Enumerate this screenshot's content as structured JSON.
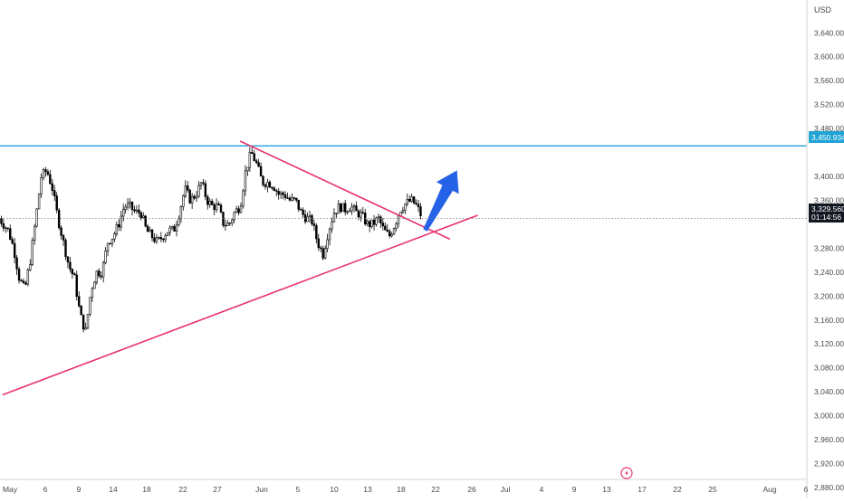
{
  "colors": {
    "background": "#ffffff",
    "candle": "#000000",
    "resistance_line": "#1fa3d4",
    "trendline": "#e8336f",
    "arrow": "#2462e8",
    "price_label_bg": "#131722",
    "axis_text": "#4a4a4a",
    "current_price_dotted": "#7a7a7a"
  },
  "price_axis": {
    "currency": "USD"
  },
  "current_price": {
    "value": "3,329.560",
    "countdown": "01:14:56"
  },
  "resistance": {
    "value": "3,450.934"
  },
  "arrow_icon": "up-right-arrow",
  "lightning_icon": "lightning-icon",
  "chart_data": {
    "type": "candlestick",
    "title": "",
    "ylabel": "",
    "xlabel": "",
    "ylim": [
      2880,
      3660
    ],
    "y_ticks": [
      3640,
      3600,
      3560,
      3520,
      3480,
      3400,
      3360,
      3280,
      3240,
      3200,
      3160,
      3120,
      3080,
      3040,
      3000,
      2960,
      2920,
      2880
    ],
    "y_tick_labels": [
      "3,640.000",
      "3,600.000",
      "3,560.000",
      "3,520.000",
      "3,480.000",
      "3,400.000",
      "3,360.000",
      "3,280.000",
      "3,240.000",
      "3,200.000",
      "3,160.000",
      "3,120.000",
      "3,080.000",
      "3,040.000",
      "3,000.000",
      "2,960.000",
      "2,920.000",
      "2,880.000"
    ],
    "x_tick_labels": [
      "May",
      "6",
      "9",
      "14",
      "18",
      "22",
      "27",
      "Jun",
      "5",
      "10",
      "13",
      "18",
      "22",
      "26",
      "Jul",
      "4",
      "9",
      "13",
      "17",
      "22",
      "25",
      "Aug",
      "6"
    ],
    "grid": false,
    "close_path": [
      [
        "May 1",
        3310
      ],
      [
        "May 2",
        3280
      ],
      [
        "May 3",
        3230
      ],
      [
        "May 4",
        3210
      ],
      [
        "May 5",
        3260
      ],
      [
        "May 6",
        3330
      ],
      [
        "May 7",
        3400
      ],
      [
        "May 8",
        3410
      ],
      [
        "May 9",
        3380
      ],
      [
        "May 10",
        3330
      ],
      [
        "May 12",
        3250
      ],
      [
        "May 13",
        3230
      ],
      [
        "May 14",
        3170
      ],
      [
        "May 15",
        3140
      ],
      [
        "May 16",
        3210
      ],
      [
        "May 17",
        3240
      ],
      [
        "May 18",
        3240
      ],
      [
        "May 19",
        3290
      ],
      [
        "May 20",
        3300
      ],
      [
        "May 21",
        3320
      ],
      [
        "May 22",
        3350
      ],
      [
        "May 23",
        3350
      ],
      [
        "May 24",
        3340
      ],
      [
        "May 25",
        3340
      ],
      [
        "May 26",
        3310
      ],
      [
        "May 27",
        3300
      ],
      [
        "May 28",
        3290
      ],
      [
        "May 29",
        3300
      ],
      [
        "May 30",
        3310
      ],
      [
        "May 31",
        3310
      ],
      [
        "Jun 1",
        3340
      ],
      [
        "Jun 2",
        3380
      ],
      [
        "Jun 3",
        3360
      ],
      [
        "Jun 4",
        3370
      ],
      [
        "Jun 5",
        3390
      ],
      [
        "Jun 6",
        3360
      ],
      [
        "Jun 7",
        3350
      ],
      [
        "Jun 8",
        3350
      ],
      [
        "Jun 9",
        3320
      ],
      [
        "Jun 10",
        3320
      ],
      [
        "Jun 11",
        3340
      ],
      [
        "Jun 12",
        3350
      ],
      [
        "Jun 13",
        3410
      ],
      [
        "Jun 14",
        3440
      ],
      [
        "Jun 15",
        3420
      ],
      [
        "Jun 16",
        3390
      ],
      [
        "Jun 17",
        3390
      ],
      [
        "Jun 18",
        3385
      ],
      [
        "Jun 19",
        3370
      ],
      [
        "Jun 20",
        3370
      ],
      [
        "Jun 21",
        3360
      ],
      [
        "Jun 22",
        3360
      ],
      [
        "Jun 23",
        3340
      ],
      [
        "Jun 24",
        3330
      ],
      [
        "Jun 25",
        3325
      ],
      [
        "Jun 26",
        3290
      ],
      [
        "Jun 27",
        3270
      ],
      [
        "Jun 28",
        3310
      ],
      [
        "Jun 29",
        3340
      ],
      [
        "Jun 30",
        3350
      ],
      [
        "Jul 1",
        3345
      ],
      [
        "Jul 2",
        3350
      ],
      [
        "Jul 3",
        3340
      ],
      [
        "Jul 4",
        3335
      ],
      [
        "Jul 5",
        3320
      ],
      [
        "Jul 6",
        3320
      ],
      [
        "Jul 7",
        3330
      ],
      [
        "Jul 8",
        3310
      ],
      [
        "Jul 9",
        3300
      ],
      [
        "Jul 10",
        3320
      ],
      [
        "Jul 11",
        3345
      ],
      [
        "Jul 12",
        3355
      ],
      [
        "Jul 13",
        3360
      ],
      [
        "Jul 14",
        3350
      ],
      [
        "Jul 15",
        3329.56
      ]
    ],
    "annotations": [
      {
        "type": "horizontal_line",
        "name": "resistance",
        "y": 3450.934
      },
      {
        "type": "trendline",
        "name": "rising support",
        "from": [
          "Apr 30",
          3035
        ],
        "to": [
          "Jul 25",
          3335
        ]
      },
      {
        "type": "trendline",
        "name": "falling resistance",
        "from": [
          "Jun 12",
          3459
        ],
        "to": [
          "Jul 20",
          3295
        ]
      },
      {
        "type": "arrow",
        "direction": "up",
        "from": [
          "Jul 15",
          3310
        ],
        "to": [
          "Jul 16",
          3410
        ]
      },
      {
        "type": "horizontal_dotted_line",
        "name": "current price",
        "y": 3329.56
      }
    ]
  }
}
